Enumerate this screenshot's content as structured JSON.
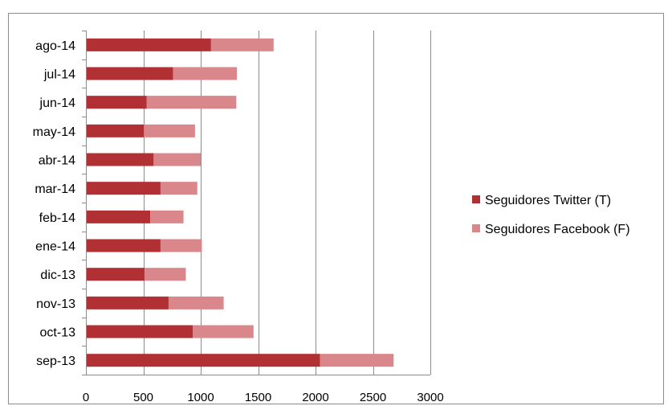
{
  "chart_data": {
    "type": "bar",
    "orientation": "horizontal",
    "stacked": true,
    "title": "",
    "xlabel": "",
    "ylabel": "",
    "categories": [
      "sep-13",
      "oct-13",
      "nov-13",
      "dic-13",
      "ene-14",
      "feb-14",
      "mar-14",
      "abr-14",
      "may-14",
      "jun-14",
      "jul-14",
      "ago-14"
    ],
    "series": [
      {
        "name": "Seguidores Twitter (T)",
        "color": "#b03034",
        "values": [
          2040,
          930,
          720,
          510,
          650,
          560,
          650,
          590,
          505,
          530,
          760,
          1090
        ]
      },
      {
        "name": "Seguidores Facebook (F)",
        "color": "#d9878a",
        "values": [
          640,
          530,
          480,
          360,
          360,
          290,
          320,
          410,
          445,
          780,
          555,
          545
        ]
      }
    ],
    "xlim": [
      0,
      3000
    ],
    "xticks": [
      "0",
      "500",
      "1000",
      "1500",
      "2000",
      "2500",
      "3000"
    ],
    "grid": "vertical",
    "legend_position": "right"
  }
}
